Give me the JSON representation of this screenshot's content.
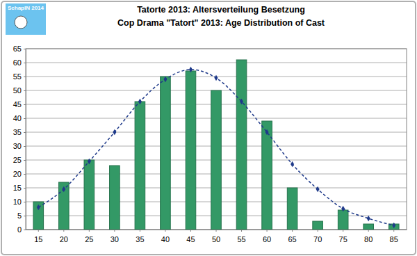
{
  "chart_data": {
    "type": "bar",
    "title": "Tatorte 2013: Altersverteilung Besetzung",
    "subtitle": "Cop Drama \"Tatort\" 2013: Age Distribution of Cast",
    "annotations": [
      "SchapIN 2014"
    ],
    "categories": [
      "15",
      "20",
      "25",
      "30",
      "35",
      "40",
      "45",
      "50",
      "55",
      "60",
      "65",
      "70",
      "75",
      "80",
      "85"
    ],
    "series": [
      {
        "type": "bar",
        "color": "#339966",
        "values": [
          10,
          17,
          25,
          23,
          46,
          55,
          57,
          50,
          61,
          39,
          15,
          3,
          7,
          2,
          2
        ]
      },
      {
        "type": "line",
        "color": "#1f3a8a",
        "line_style": "dashed",
        "marker": "diamond",
        "values": [
          8,
          14.5,
          24.5,
          35,
          46,
          54,
          57.5,
          54.5,
          46,
          35,
          23.5,
          14.5,
          7.5,
          4,
          1.5
        ]
      }
    ],
    "ylim": [
      0,
      65
    ],
    "yticks": [
      0,
      5,
      10,
      15,
      20,
      25,
      30,
      35,
      40,
      45,
      50,
      55,
      60,
      65
    ],
    "grid": true
  }
}
